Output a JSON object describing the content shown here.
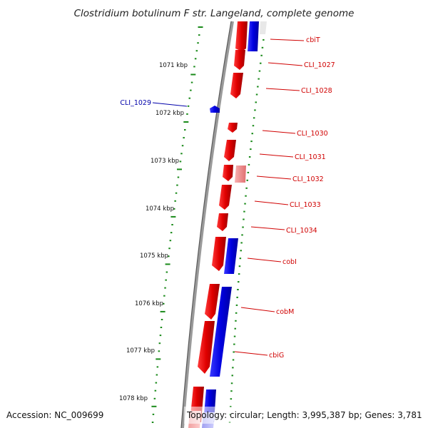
{
  "title": "Clostridium botulinum F str. Langeland, complete genome",
  "footer": {
    "accession": "Accession: NC_009699",
    "topology": "Topology: circular; Length: 3,995,387 bp; Genes: 3,781"
  },
  "kbp_ticks": [
    "1071 kbp",
    "1072 kbp",
    "1073 kbp",
    "1074 kbp",
    "1075 kbp",
    "1076 kbp",
    "1077 kbp",
    "1078 kbp"
  ],
  "genes": [
    {
      "name": "cbiT",
      "strand": "forward"
    },
    {
      "name": "CLI_1027",
      "strand": "forward"
    },
    {
      "name": "CLI_1028",
      "strand": "forward"
    },
    {
      "name": "CLI_1029",
      "strand": "reverse"
    },
    {
      "name": "CLI_1030",
      "strand": "forward"
    },
    {
      "name": "CLI_1031",
      "strand": "forward"
    },
    {
      "name": "CLI_1032",
      "strand": "forward"
    },
    {
      "name": "CLI_1033",
      "strand": "forward"
    },
    {
      "name": "CLI_1034",
      "strand": "forward"
    },
    {
      "name": "cobI",
      "strand": "forward"
    },
    {
      "name": "cobM",
      "strand": "forward"
    },
    {
      "name": "cbiG",
      "strand": "forward"
    }
  ],
  "colors": {
    "forward": "#e00000",
    "reverse": "#0000cc",
    "forward_light": "#f08080",
    "backbone": "#888888",
    "tick": "#1a8a1a"
  }
}
